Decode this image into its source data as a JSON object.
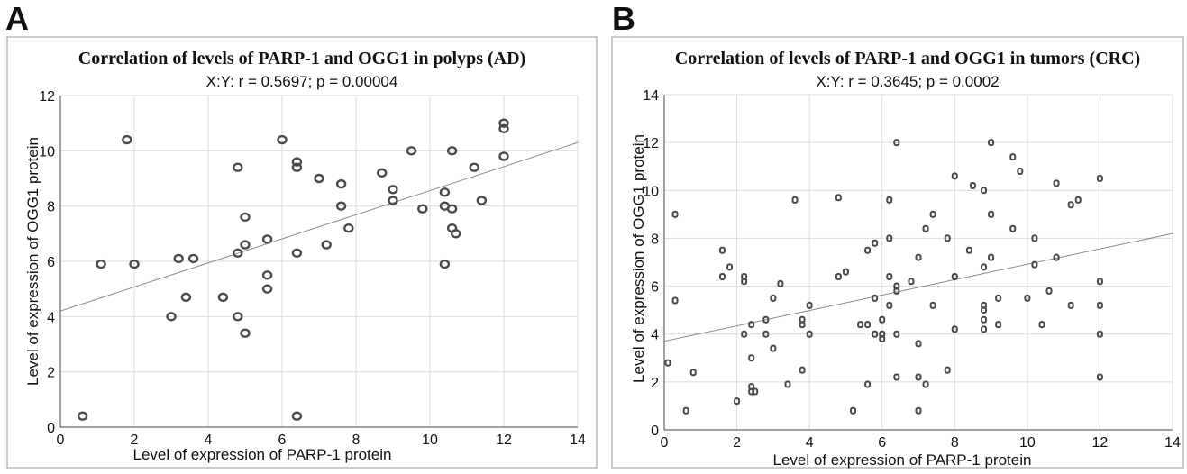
{
  "panels": {
    "a": {
      "letter": "A"
    },
    "b": {
      "letter": "B"
    }
  },
  "chart_data": [
    {
      "type": "scatter",
      "title": "Correlation of levels of PARP-1 and OGG1 in polyps (AD)",
      "subtitle": "X:Y:   r = 0.5697; p = 0.00004",
      "xlabel": "Level of expression of PARP-1 protein",
      "ylabel": "Level of expression of OGG1 protein",
      "xlim": [
        0,
        14
      ],
      "ylim": [
        0,
        12
      ],
      "xticks": [
        "0",
        "2",
        "4",
        "6",
        "8",
        "10",
        "12",
        "14"
      ],
      "yticks": [
        "0",
        "2",
        "4",
        "6",
        "8",
        "10",
        "12"
      ],
      "grid": true,
      "regression": {
        "x": [
          0,
          14
        ],
        "y": [
          4.2,
          10.3
        ]
      },
      "points": [
        [
          0.6,
          0.4
        ],
        [
          1.1,
          5.9
        ],
        [
          1.8,
          10.4
        ],
        [
          2.0,
          5.9
        ],
        [
          3.0,
          4.0
        ],
        [
          3.2,
          6.1
        ],
        [
          3.4,
          4.7
        ],
        [
          3.6,
          6.1
        ],
        [
          4.4,
          4.7
        ],
        [
          4.8,
          4.0
        ],
        [
          4.8,
          6.3
        ],
        [
          4.8,
          9.4
        ],
        [
          5.0,
          7.6
        ],
        [
          5.0,
          6.6
        ],
        [
          5.0,
          3.4
        ],
        [
          5.6,
          6.8
        ],
        [
          5.6,
          5.5
        ],
        [
          5.6,
          5.0
        ],
        [
          6.0,
          10.4
        ],
        [
          6.4,
          9.6
        ],
        [
          6.4,
          9.4
        ],
        [
          6.4,
          6.3
        ],
        [
          6.4,
          0.4
        ],
        [
          7.0,
          9.0
        ],
        [
          7.2,
          6.6
        ],
        [
          7.6,
          8.8
        ],
        [
          7.6,
          8.0
        ],
        [
          7.8,
          7.2
        ],
        [
          8.7,
          9.2
        ],
        [
          9.0,
          8.6
        ],
        [
          9.0,
          8.2
        ],
        [
          9.5,
          10.0
        ],
        [
          9.8,
          7.9
        ],
        [
          10.4,
          8.5
        ],
        [
          10.4,
          8.0
        ],
        [
          10.4,
          5.9
        ],
        [
          10.6,
          10.0
        ],
        [
          10.6,
          7.9
        ],
        [
          10.6,
          7.2
        ],
        [
          10.7,
          7.0
        ],
        [
          11.2,
          9.4
        ],
        [
          11.4,
          8.2
        ],
        [
          12.0,
          11.0
        ],
        [
          12.0,
          10.8
        ],
        [
          12.0,
          9.8
        ]
      ]
    },
    {
      "type": "scatter",
      "title": "Correlation of levels of PARP-1 and OGG1 in tumors (CRC)",
      "subtitle": "X:Y:   r = 0.3645; p = 0.0002",
      "xlabel": "Level of expression of PARP-1 protein",
      "ylabel": "Level of expression of OGG1 protein",
      "xlim": [
        0,
        14
      ],
      "ylim": [
        0,
        14
      ],
      "xticks": [
        "0",
        "2",
        "4",
        "6",
        "8",
        "10",
        "12",
        "14"
      ],
      "yticks": [
        "0",
        "2",
        "4",
        "6",
        "8",
        "10",
        "12",
        "14"
      ],
      "grid": true,
      "regression": {
        "x": [
          0,
          14
        ],
        "y": [
          3.7,
          8.2
        ]
      },
      "points": [
        [
          0.1,
          2.8
        ],
        [
          0.3,
          9.0
        ],
        [
          0.3,
          5.4
        ],
        [
          0.6,
          0.8
        ],
        [
          0.8,
          2.4
        ],
        [
          1.6,
          7.5
        ],
        [
          1.6,
          6.4
        ],
        [
          1.8,
          6.8
        ],
        [
          2.0,
          1.2
        ],
        [
          2.2,
          6.4
        ],
        [
          2.2,
          6.2
        ],
        [
          2.2,
          4.0
        ],
        [
          2.4,
          4.4
        ],
        [
          2.4,
          3.0
        ],
        [
          2.4,
          1.8
        ],
        [
          2.4,
          1.6
        ],
        [
          2.5,
          1.6
        ],
        [
          2.8,
          4.6
        ],
        [
          2.8,
          4.0
        ],
        [
          3.0,
          5.5
        ],
        [
          3.0,
          3.4
        ],
        [
          3.2,
          6.1
        ],
        [
          3.4,
          1.9
        ],
        [
          3.6,
          9.6
        ],
        [
          3.8,
          4.6
        ],
        [
          3.8,
          4.4
        ],
        [
          3.8,
          2.5
        ],
        [
          4.0,
          5.2
        ],
        [
          4.0,
          4.0
        ],
        [
          4.8,
          9.7
        ],
        [
          4.8,
          6.4
        ],
        [
          5.0,
          6.6
        ],
        [
          5.2,
          0.8
        ],
        [
          5.4,
          4.4
        ],
        [
          5.6,
          7.5
        ],
        [
          5.6,
          4.4
        ],
        [
          5.6,
          1.9
        ],
        [
          5.8,
          7.8
        ],
        [
          5.8,
          5.5
        ],
        [
          5.8,
          4.0
        ],
        [
          6.0,
          4.6
        ],
        [
          6.0,
          4.0
        ],
        [
          6.0,
          3.8
        ],
        [
          6.2,
          9.6
        ],
        [
          6.2,
          8.0
        ],
        [
          6.2,
          6.4
        ],
        [
          6.2,
          5.2
        ],
        [
          6.4,
          12.0
        ],
        [
          6.4,
          6.0
        ],
        [
          6.4,
          5.8
        ],
        [
          6.4,
          4.0
        ],
        [
          6.4,
          2.2
        ],
        [
          6.8,
          6.2
        ],
        [
          7.0,
          7.2
        ],
        [
          7.0,
          3.6
        ],
        [
          7.0,
          2.2
        ],
        [
          7.0,
          0.8
        ],
        [
          7.2,
          8.4
        ],
        [
          7.2,
          1.9
        ],
        [
          7.4,
          9.0
        ],
        [
          7.4,
          5.2
        ],
        [
          7.8,
          8.0
        ],
        [
          7.8,
          2.5
        ],
        [
          8.0,
          10.6
        ],
        [
          8.0,
          6.4
        ],
        [
          8.0,
          4.2
        ],
        [
          8.4,
          7.5
        ],
        [
          8.5,
          10.2
        ],
        [
          8.8,
          10.0
        ],
        [
          8.8,
          6.8
        ],
        [
          8.8,
          5.2
        ],
        [
          8.8,
          5.0
        ],
        [
          8.8,
          4.6
        ],
        [
          8.8,
          4.2
        ],
        [
          9.0,
          12.0
        ],
        [
          9.0,
          9.0
        ],
        [
          9.0,
          7.2
        ],
        [
          9.2,
          5.5
        ],
        [
          9.2,
          4.4
        ],
        [
          9.6,
          11.4
        ],
        [
          9.6,
          8.4
        ],
        [
          9.8,
          10.8
        ],
        [
          10.0,
          5.5
        ],
        [
          10.2,
          8.0
        ],
        [
          10.2,
          6.9
        ],
        [
          10.4,
          4.4
        ],
        [
          10.6,
          5.8
        ],
        [
          10.8,
          10.3
        ],
        [
          10.8,
          7.2
        ],
        [
          11.2,
          9.4
        ],
        [
          11.2,
          5.2
        ],
        [
          11.4,
          9.6
        ],
        [
          12.0,
          10.5
        ],
        [
          12.0,
          6.2
        ],
        [
          12.0,
          5.2
        ],
        [
          12.0,
          4.0
        ],
        [
          12.0,
          2.2
        ]
      ]
    }
  ]
}
